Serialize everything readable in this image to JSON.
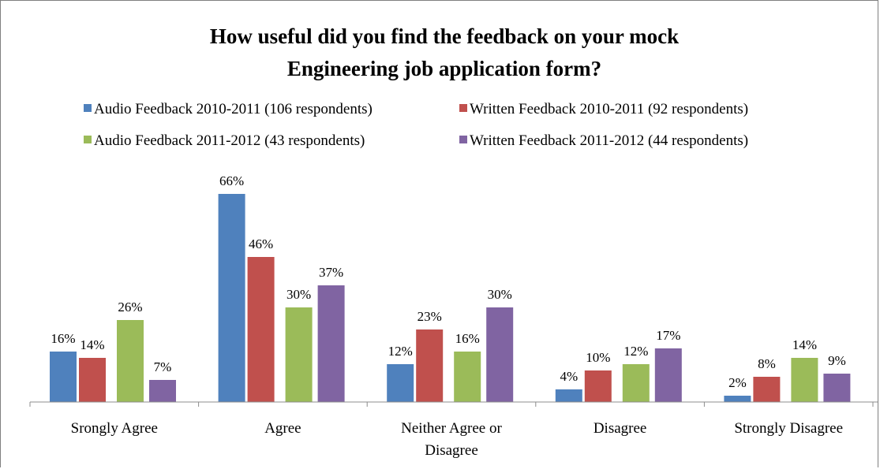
{
  "chart_data": {
    "type": "bar",
    "title_lines": [
      "How useful did you find the feedback on your  mock",
      "Engineering job application form?"
    ],
    "categories": [
      [
        "Srongly Agree"
      ],
      [
        "Agree"
      ],
      [
        "Neither Agree or",
        "Disagree"
      ],
      [
        "Disagree"
      ],
      [
        "Strongly Disagree"
      ]
    ],
    "series": [
      {
        "name": "Audio Feedback 2010-2011 (106 respondents)",
        "color": "#4f81bd",
        "values": [
          16,
          66,
          12,
          4,
          2
        ],
        "labels": [
          "16%",
          "66%",
          "12%",
          "4%",
          "2%"
        ]
      },
      {
        "name": "Written Feedback 2010-2011 (92 respondents)",
        "color": "#c0504d",
        "values": [
          14,
          46,
          23,
          10,
          8
        ],
        "labels": [
          "14%",
          "46%",
          "23%",
          "10%",
          "8%"
        ]
      },
      {
        "name": "Audio Feedback 2011-2012 (43 respondents)",
        "color": "#9bbb59",
        "values": [
          26,
          30,
          16,
          12,
          14
        ],
        "labels": [
          "26%",
          "30%",
          "16%",
          "12%",
          "14%"
        ]
      },
      {
        "name": "Written Feedback 2011-2012 (44 respondents)",
        "color": "#8064a2",
        "values": [
          7,
          37,
          30,
          17,
          9
        ],
        "labels": [
          "7%",
          "37%",
          "30%",
          "17%",
          "9%"
        ]
      }
    ],
    "ylim": [
      0,
      70
    ],
    "grid": false,
    "legend_position": "top"
  }
}
